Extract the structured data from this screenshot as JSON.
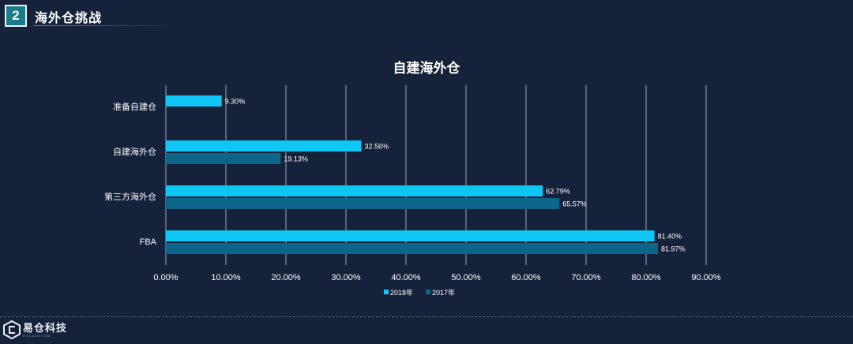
{
  "header": {
    "section_number": "2",
    "section_title": "海外仓挑战"
  },
  "logo": {
    "name": "易仓科技",
    "tagline": "ECCANGCOM"
  },
  "colors": {
    "background": "#16223a",
    "series_2018": "#0fc6f4",
    "series_2017": "#0d6689",
    "grid": "#c9d3de",
    "text": "#ffffff"
  },
  "chart_data": {
    "type": "bar",
    "orientation": "horizontal",
    "title": "自建海外仓",
    "categories": [
      "准备自建仓",
      "自建海外仓",
      "第三方海外仓",
      "FBA"
    ],
    "series": [
      {
        "name": "2018年",
        "values": [
          9.3,
          32.56,
          62.79,
          81.4
        ],
        "labels": [
          "9.30%",
          "32.56%",
          "62.79%",
          "81.40%"
        ]
      },
      {
        "name": "2017年",
        "values": [
          null,
          19.13,
          65.57,
          81.97
        ],
        "labels": [
          "",
          "19.13%",
          "65.57%",
          "81.97%"
        ]
      }
    ],
    "xlim": [
      0,
      90
    ],
    "xticks": [
      "0.00%",
      "10.00%",
      "20.00%",
      "30.00%",
      "40.00%",
      "50.00%",
      "60.00%",
      "70.00%",
      "80.00%",
      "90.00%"
    ],
    "grid": true,
    "legend_position": "bottom"
  }
}
